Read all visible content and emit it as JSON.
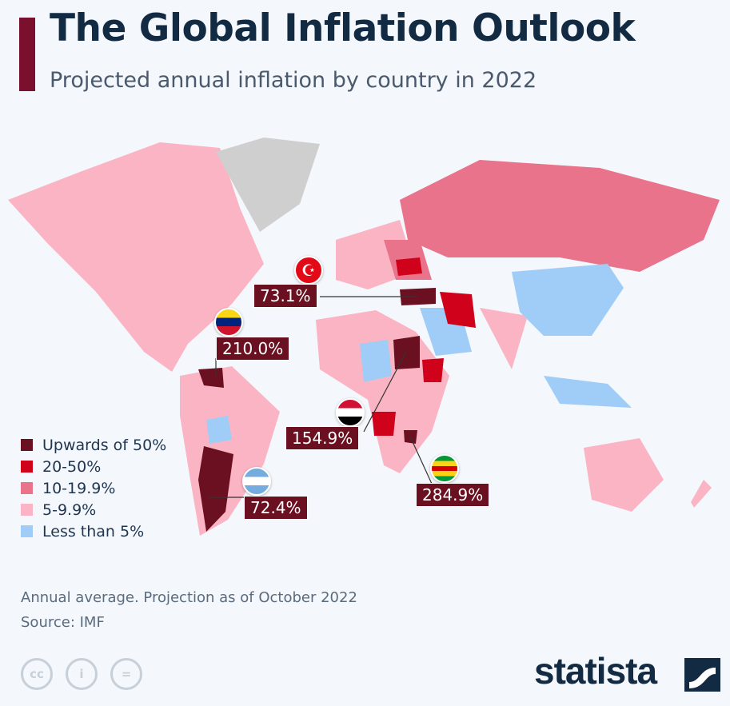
{
  "header": {
    "title": "The Global Inflation Outlook",
    "subtitle": "Projected annual inflation by country in 2022"
  },
  "colors": {
    "upwards_50": "#6b1020",
    "p20_50": "#d0021b",
    "p10_19": "#e8738a",
    "p5_9": "#fbb4c3",
    "less_5": "#9fcdf8",
    "no_data": "#cfcfcf",
    "accent": "#7a0f2e"
  },
  "legend": [
    {
      "label": "Upwards of 50%",
      "color": "#6b1020"
    },
    {
      "label": "20-50%",
      "color": "#d0021b"
    },
    {
      "label": "10-19.9%",
      "color": "#e8738a"
    },
    {
      "label": "5-9.9%",
      "color": "#fbb4c3"
    },
    {
      "label": "Less than 5%",
      "color": "#9fcdf8"
    }
  ],
  "annotations": [
    {
      "country": "Turkey",
      "value": "73.1%"
    },
    {
      "country": "Venezuela",
      "value": "210.0%"
    },
    {
      "country": "Sudan",
      "value": "154.9%"
    },
    {
      "country": "Zimbabwe",
      "value": "284.9%"
    },
    {
      "country": "Argentina",
      "value": "72.4%"
    }
  ],
  "footer": {
    "note": "Annual average. Projection as of October 2022",
    "source": "Source: IMF",
    "brand": "statista",
    "license_icons": [
      "cc-icon",
      "by-icon",
      "nd-icon"
    ]
  }
}
